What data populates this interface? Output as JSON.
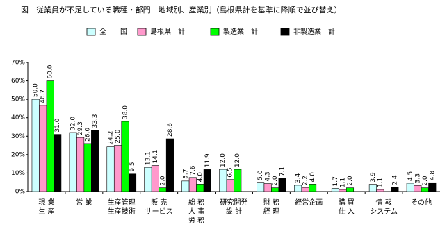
{
  "chart_data": {
    "type": "bar",
    "title": "図　従業員が不足している職種・部門　地域別、産業別（島根県計を基準に降順で並び替え）",
    "categories": [
      [
        "現 業",
        "生 産"
      ],
      [
        "営 業"
      ],
      [
        "生産管理",
        "生産技術"
      ],
      [
        "販 売",
        "サービス"
      ],
      [
        "総 務",
        "人 事",
        "労 務"
      ],
      [
        "研究開発",
        "設 計"
      ],
      [
        "財 務",
        "経 理"
      ],
      [
        "経営企画"
      ],
      [
        "購 買",
        "仕 入"
      ],
      [
        "情 報",
        "システム"
      ],
      [
        "その他"
      ]
    ],
    "series": [
      {
        "name": "全　　国",
        "color": "#ccffff",
        "values": [
          50.0,
          32.0,
          24.2,
          13.1,
          5.7,
          12.0,
          5.0,
          3.4,
          1.7,
          3.9,
          4.5
        ],
        "value_labels": [
          "50.0",
          "32.0",
          "24.2",
          "13.1",
          "5.7",
          "12.0",
          "5.0",
          "3.4",
          "1.7",
          "3.9",
          "4.5"
        ]
      },
      {
        "name": "島根県　計",
        "color": "#ff99cc",
        "values": [
          46.7,
          29.3,
          25.0,
          14.1,
          7.6,
          6.5,
          4.3,
          2.2,
          1.1,
          1.1,
          3.3
        ],
        "value_labels": [
          "46.7",
          "29.3",
          "25.0",
          "14.1",
          "7.6",
          "6.5",
          "4.3",
          "2.2",
          "1.1",
          "1.1",
          "3.3"
        ]
      },
      {
        "name": "製造業　計",
        "color": "#00ff00",
        "values": [
          60.0,
          26.0,
          38.0,
          2.0,
          4.0,
          12.0,
          2.0,
          4.0,
          2.0,
          null,
          2.0
        ],
        "value_labels": [
          "60.0",
          "26.0",
          "38.0",
          "2.0",
          "4.0",
          "12.0",
          "2.0",
          "4.0",
          "2.0",
          null,
          "2.0"
        ]
      },
      {
        "name": "非製造業　計",
        "color": "#000000",
        "values": [
          31.0,
          33.3,
          9.5,
          28.6,
          11.9,
          null,
          7.1,
          null,
          null,
          2.4,
          4.8
        ],
        "value_labels": [
          "31.0",
          "33.3",
          "9.5",
          "28.6",
          "11.9",
          null,
          "7.1",
          null,
          null,
          "2.4",
          "4.8"
        ]
      }
    ],
    "ylim": [
      0,
      70
    ],
    "yticks": [
      {
        "value": 0,
        "label": "0%"
      },
      {
        "value": 10,
        "label": "10%"
      },
      {
        "value": 20,
        "label": "20%"
      },
      {
        "value": 30,
        "label": "30%"
      },
      {
        "value": 40,
        "label": "40%"
      },
      {
        "value": 50,
        "label": "50%"
      },
      {
        "value": 60,
        "label": "60%"
      },
      {
        "value": 70,
        "label": "70%"
      }
    ],
    "grid": false
  }
}
